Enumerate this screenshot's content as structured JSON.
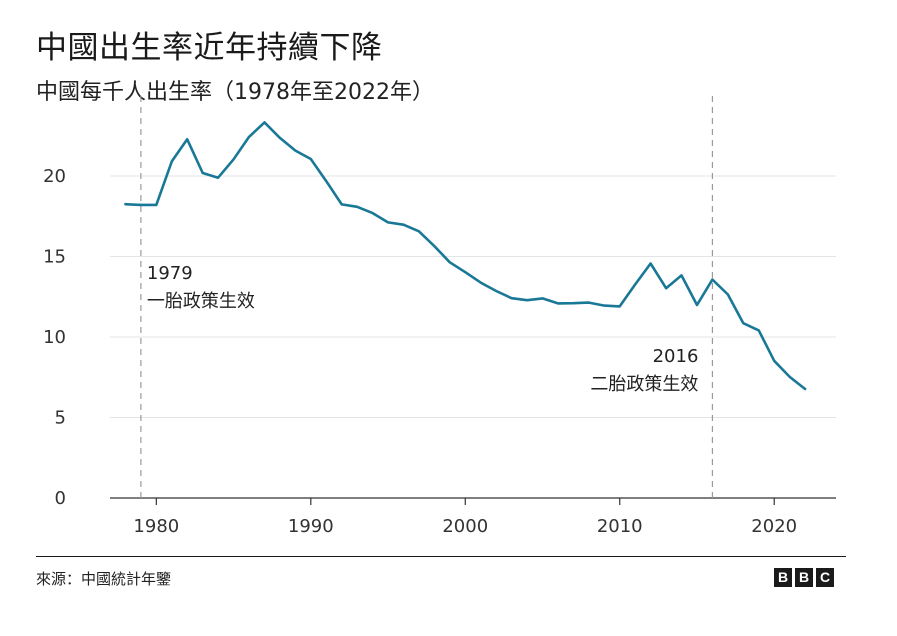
{
  "title": "中國出生率近年持續下降",
  "subtitle": "中國每千人出生率（1978年至2022年）",
  "source": "來源：中國統計年鑒",
  "logo": [
    "B",
    "B",
    "C"
  ],
  "colors": {
    "line": "#1a7897",
    "grid": "#e4e4e4",
    "axis": "#333333",
    "annotation_line": "#9a9a9a"
  },
  "chart_data": {
    "type": "line",
    "x": [
      1978,
      1979,
      1980,
      1981,
      1982,
      1983,
      1984,
      1985,
      1986,
      1987,
      1988,
      1989,
      1990,
      1991,
      1992,
      1993,
      1994,
      1995,
      1996,
      1997,
      1998,
      1999,
      2000,
      2001,
      2002,
      2003,
      2004,
      2005,
      2006,
      2007,
      2008,
      2009,
      2010,
      2011,
      2012,
      2013,
      2014,
      2015,
      2016,
      2017,
      2018,
      2019,
      2020,
      2021,
      2022
    ],
    "series": [
      {
        "values": [
          18.25,
          18.21,
          18.21,
          20.91,
          22.28,
          20.19,
          19.9,
          21.04,
          22.43,
          23.33,
          22.37,
          21.58,
          21.06,
          19.68,
          18.24,
          18.09,
          17.7,
          17.12,
          16.98,
          16.57,
          15.64,
          14.64,
          14.03,
          13.38,
          12.86,
          12.41,
          12.29,
          12.4,
          12.09,
          12.1,
          12.14,
          11.95,
          11.9,
          13.27,
          14.57,
          13.03,
          13.83,
          11.99,
          13.57,
          12.64,
          10.86,
          10.41,
          8.52,
          7.52,
          6.77
        ]
      }
    ],
    "xticks": [
      "1980",
      "1990",
      "2000",
      "2010",
      "2020"
    ],
    "xtick_values": [
      1980,
      1990,
      2000,
      2010,
      2020
    ],
    "yticks": [
      "0",
      "5",
      "10",
      "15",
      "20"
    ],
    "ytick_values": [
      0,
      5,
      10,
      15,
      20
    ],
    "xlim": [
      1977,
      2024
    ],
    "ylim": [
      0,
      24.6
    ],
    "grid": true,
    "annotations": [
      {
        "x": 1979,
        "year_label": "1979",
        "text": "一胎政策生效",
        "align": "left"
      },
      {
        "x": 2016,
        "year_label": "2016",
        "text": "二胎政策生效",
        "align": "right"
      }
    ]
  }
}
